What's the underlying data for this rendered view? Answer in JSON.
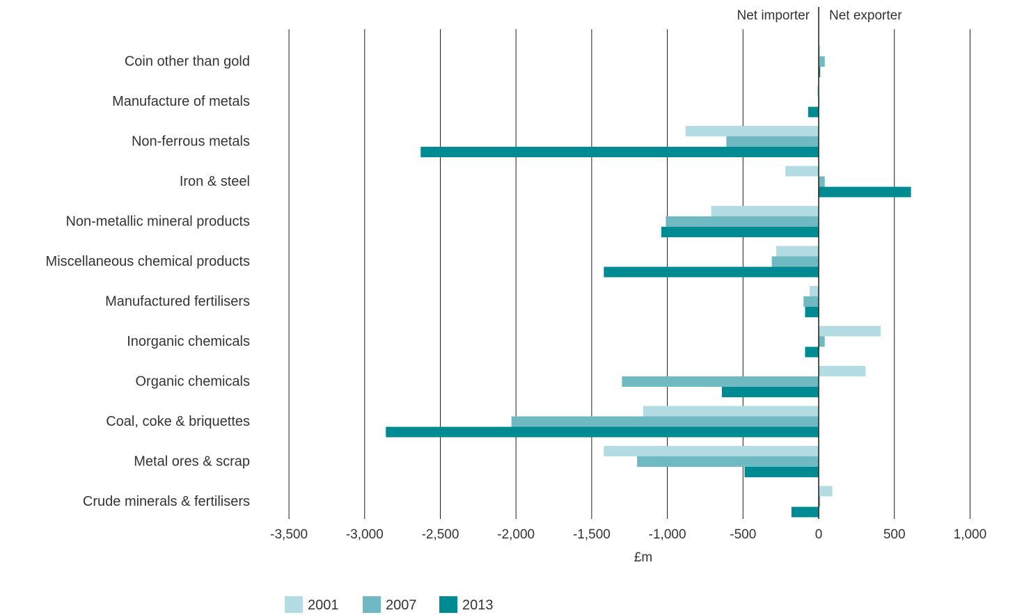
{
  "chart_data": {
    "type": "bar",
    "orientation": "horizontal",
    "title": "",
    "xlabel": "£m",
    "ylabel": "",
    "xlim": [
      -3500,
      1000
    ],
    "xticks": [
      -3500,
      -3000,
      -2500,
      -2000,
      -1500,
      -1000,
      -500,
      0,
      500,
      1000
    ],
    "xtick_labels": [
      "-3,500",
      "-3,000",
      "-2,500",
      "-2,000",
      "-1,500",
      "-1,000",
      "-500",
      "0",
      "500",
      "1,000"
    ],
    "grid": true,
    "legend_position": "bottom-left",
    "annotations": {
      "left": "Net importer",
      "right": "Net exporter"
    },
    "categories": [
      "Coin other than gold",
      "Manufacture of metals",
      "Non-ferrous metals",
      "Iron & steel",
      "Non-metallic mineral products",
      "Miscellaneous chemical products",
      "Manufactured fertilisers",
      "Inorganic chemicals",
      "Organic chemicals",
      "Coal, coke & briquettes",
      "Metal ores & scrap",
      "Crude minerals & fertilisers"
    ],
    "series": [
      {
        "name": "2001",
        "color": "#b3dce2",
        "values": [
          10,
          -10,
          -880,
          -220,
          -710,
          -280,
          -60,
          410,
          310,
          -1160,
          -1420,
          90
        ]
      },
      {
        "name": "2007",
        "color": "#6fb9c3",
        "values": [
          40,
          5,
          -610,
          40,
          -1010,
          -310,
          -100,
          40,
          -1300,
          -2030,
          -1200,
          10
        ]
      },
      {
        "name": "2013",
        "color": "#008b93",
        "values": [
          10,
          -70,
          -2630,
          610,
          -1040,
          -1420,
          -90,
          -90,
          -640,
          -2860,
          -490,
          -180
        ]
      }
    ]
  }
}
